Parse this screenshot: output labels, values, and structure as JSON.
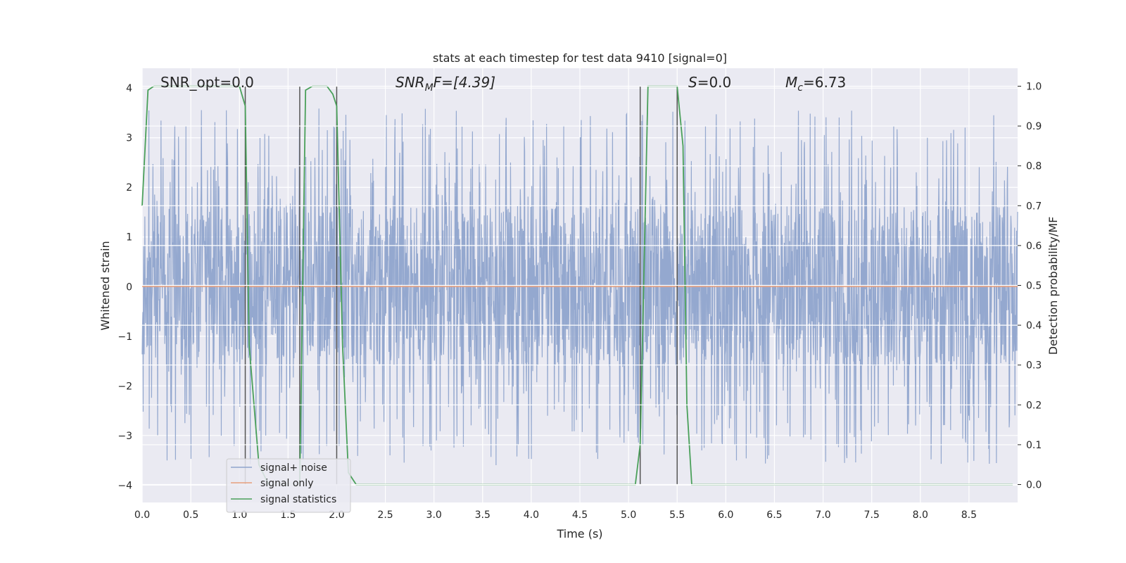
{
  "chart_data": {
    "type": "line",
    "title": "stats at each timestep for test data 9410 [signal=0]",
    "xlabel": "Time (s)",
    "ylabel": "Whitened strain",
    "y2label": "Detection probability/MF",
    "xlim": [
      0.0,
      9.0
    ],
    "ylim": [
      -4.35,
      4.4
    ],
    "y2lim": [
      -0.045,
      1.045
    ],
    "xticks": [
      "0.0",
      "0.5",
      "1.0",
      "1.5",
      "2.0",
      "2.5",
      "3.0",
      "3.5",
      "4.0",
      "4.5",
      "5.0",
      "5.5",
      "6.0",
      "6.5",
      "7.0",
      "7.5",
      "8.0",
      "8.5"
    ],
    "yticks": [
      "−4",
      "−3",
      "−2",
      "−1",
      "0",
      "1",
      "2",
      "3",
      "4"
    ],
    "y2ticks": [
      "0.0",
      "0.1",
      "0.2",
      "0.3",
      "0.4",
      "0.5",
      "0.6",
      "0.7",
      "0.8",
      "0.9",
      "1.0"
    ],
    "grid": true,
    "legend_position": "lower-left",
    "annotations": {
      "snr_opt": "SNR_opt=0.0",
      "snr_mf_base": "SNR",
      "snr_mf_sub": "M",
      "snr_mf_rest": "F=[4.39]",
      "s_italic": "S",
      "s_rest": "=0.0",
      "mc_base": "M",
      "mc_sub": "c",
      "mc_rest": "=6.73"
    },
    "series": [
      {
        "name": "signal+ noise",
        "color": "#8fa4cc",
        "description_kind": "noise",
        "amplitude_core": 1.6,
        "amplitude_peak": 3.6
      },
      {
        "name": "signal only",
        "color": "#e8a07c",
        "values_constant": 0
      },
      {
        "name": "signal statistics",
        "color": "#4aa05a",
        "axis": "right",
        "x": [
          0.0,
          0.06,
          0.12,
          0.5,
          1.0,
          1.06,
          1.1,
          1.2,
          1.3,
          1.6,
          1.62,
          1.68,
          1.75,
          1.9,
          1.96,
          2.0,
          2.06,
          2.12,
          2.2,
          2.5,
          3.0,
          4.0,
          5.0,
          5.07,
          5.12,
          5.2,
          5.5,
          5.56,
          5.6,
          5.65,
          6.0,
          7.0,
          8.0,
          8.95
        ],
        "values": [
          0.7,
          0.99,
          1.0,
          1.0,
          1.0,
          0.95,
          0.35,
          0.05,
          0.0,
          0.0,
          0.0,
          0.99,
          1.0,
          1.0,
          0.98,
          0.95,
          0.35,
          0.03,
          0.0,
          0.0,
          0.0,
          0.0,
          0.0,
          0.0,
          0.1,
          1.0,
          1.0,
          0.85,
          0.2,
          0.0,
          0.0,
          0.0,
          0.0,
          0.0
        ]
      }
    ],
    "vertical_markers": [
      1.06,
      1.62,
      2.0,
      5.12,
      5.5
    ]
  }
}
